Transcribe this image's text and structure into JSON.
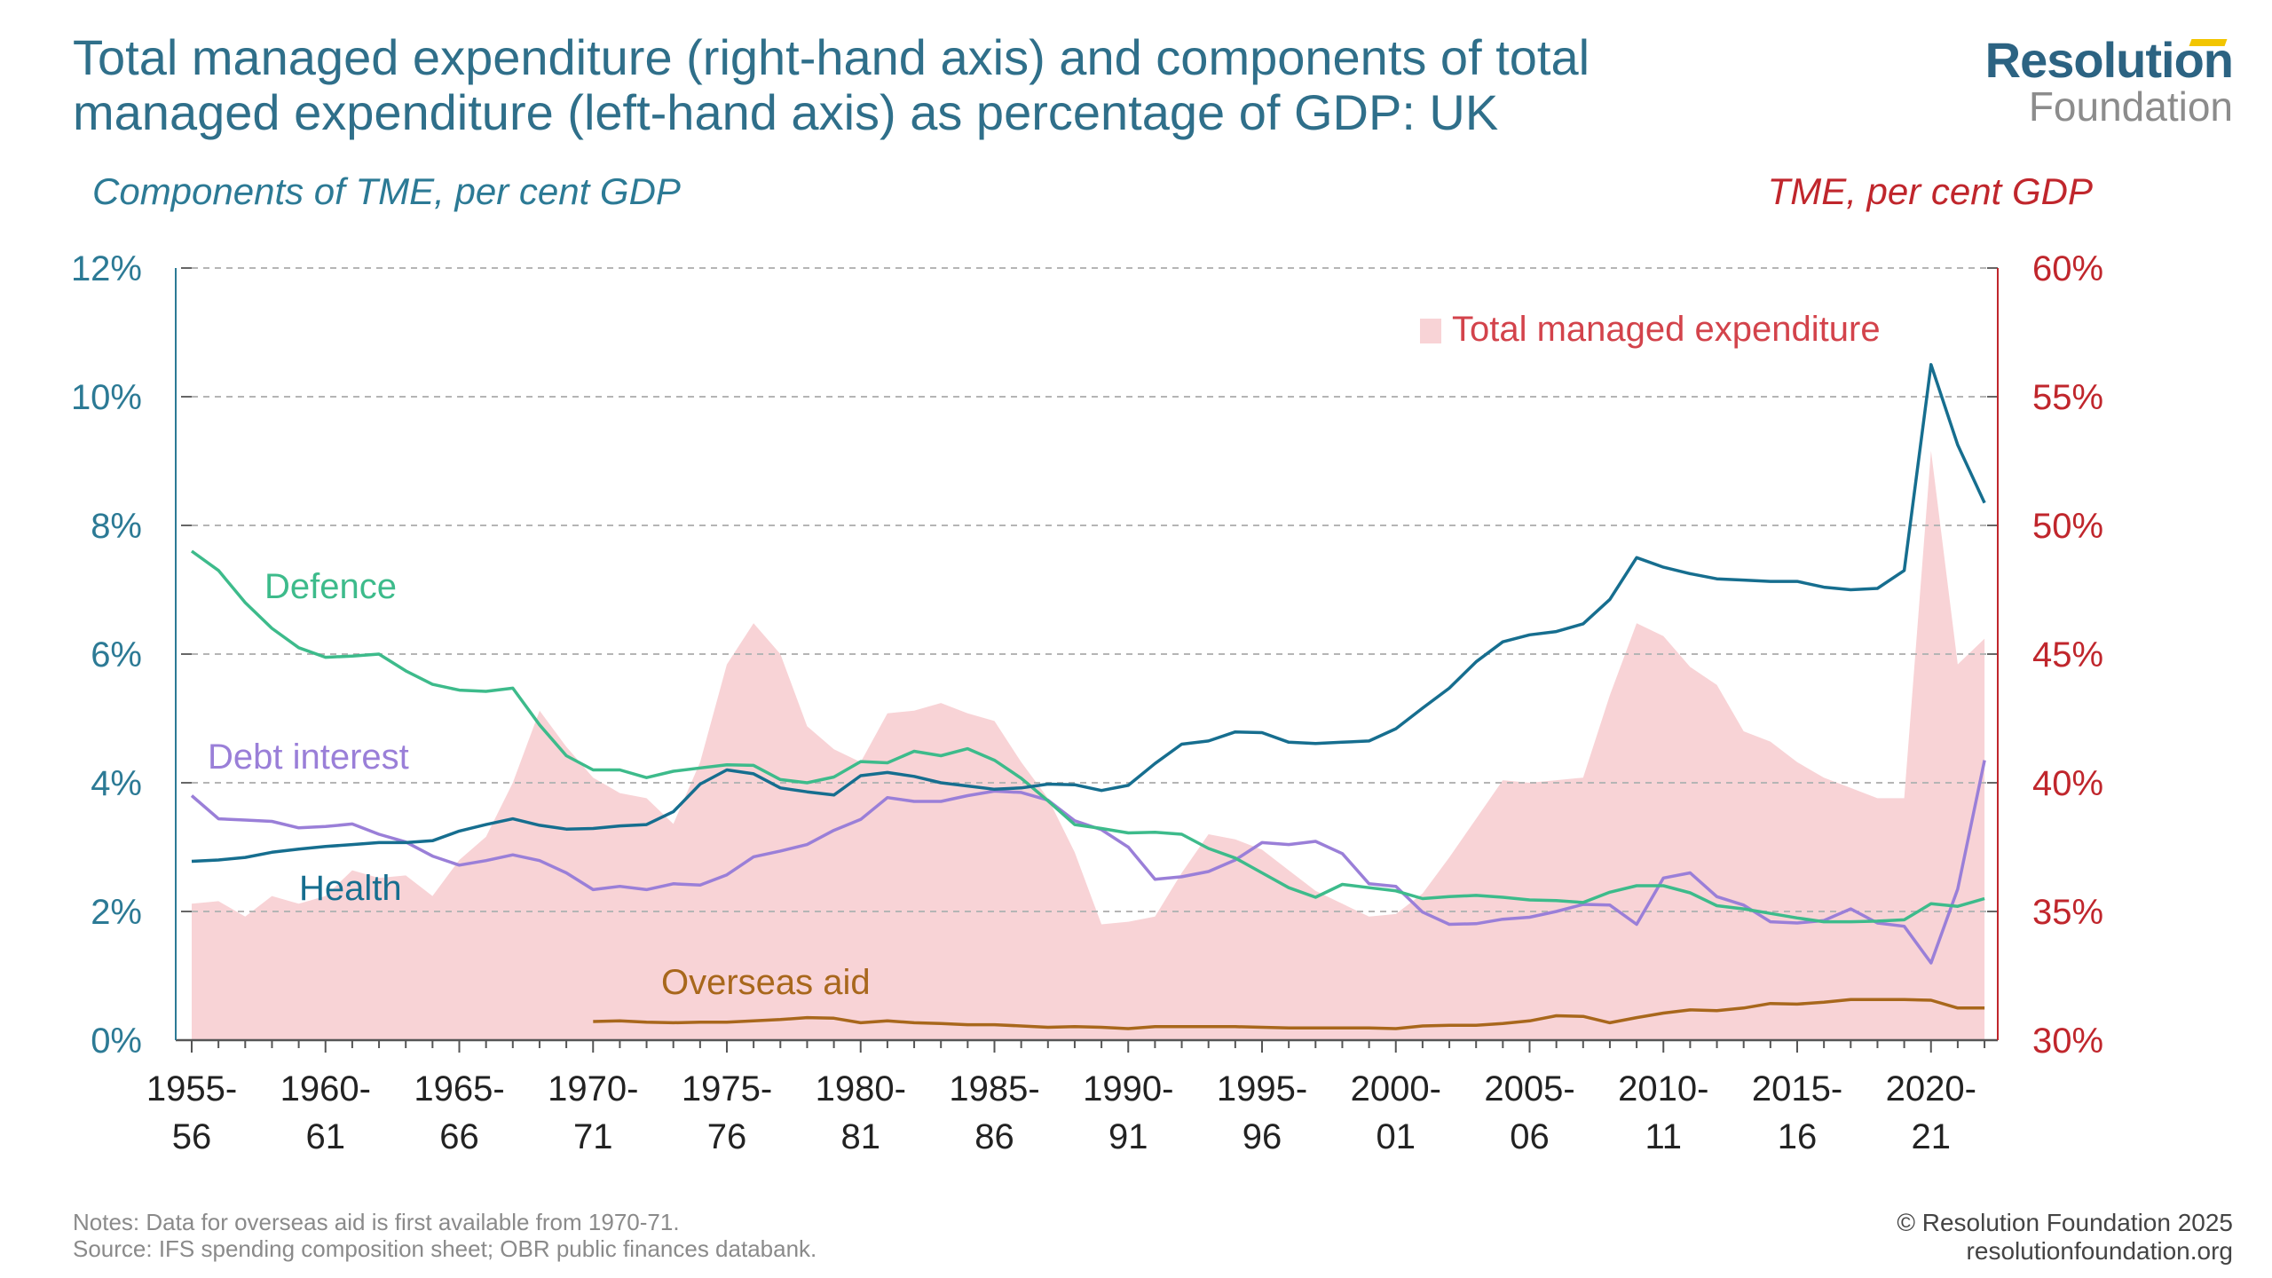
{
  "title": "Total managed expenditure (right-hand axis) and components of total managed expenditure (left-hand axis) as percentage of GDP: UK",
  "logo": {
    "top": "Resolution",
    "bottom": "Foundation"
  },
  "colors": {
    "defence": "#3dbb8b",
    "health": "#166e8f",
    "debt_interest": "#9a7fd8",
    "overseas_aid": "#a8671c",
    "tme_fill": "#f8d3d6",
    "left_axis": "#2c7a95",
    "right_axis": "#c0262c",
    "grid": "#b5b5b5"
  },
  "notes": "Notes: Data for overseas aid is first available from 1970-71.",
  "source": "Source: IFS spending composition sheet; OBR public finances databank.",
  "copyright": "© Resolution Foundation 2025",
  "website": "resolutionfoundation.org",
  "chart_data": {
    "type": "line",
    "left_axis_title": "Components of TME, per cent GDP",
    "right_axis_title": "TME, per cent GDP",
    "left_ylim": [
      0,
      12
    ],
    "right_ylim": [
      30,
      60
    ],
    "left_ticks": [
      "0%",
      "2%",
      "4%",
      "6%",
      "8%",
      "10%",
      "12%"
    ],
    "right_ticks": [
      "30%",
      "35%",
      "40%",
      "45%",
      "50%",
      "55%",
      "60%"
    ],
    "grid": true,
    "x_tick_labels": [
      [
        "1955-",
        "56"
      ],
      [
        "1960-",
        "61"
      ],
      [
        "1965-",
        "66"
      ],
      [
        "1970-",
        "71"
      ],
      [
        "1975-",
        "76"
      ],
      [
        "1980-",
        "81"
      ],
      [
        "1985-",
        "86"
      ],
      [
        "1990-",
        "91"
      ],
      [
        "1995-",
        "96"
      ],
      [
        "2000-",
        "01"
      ],
      [
        "2005-",
        "06"
      ],
      [
        "2010-",
        "11"
      ],
      [
        "2015-",
        "16"
      ],
      [
        "2020-",
        "21"
      ]
    ],
    "x_start_year": 1955,
    "x_end_year": 2022,
    "series_labels": {
      "tme": "Total managed expenditure",
      "defence": "Defence",
      "debt_interest": "Debt interest",
      "health": "Health",
      "overseas_aid": "Overseas aid"
    },
    "tme": [
      35.3,
      35.4,
      34.8,
      35.6,
      35.3,
      35.6,
      36.6,
      36.3,
      36.4,
      35.6,
      37.0,
      37.9,
      40.0,
      42.8,
      41.4,
      40.2,
      39.6,
      39.4,
      38.4,
      40.8,
      44.6,
      46.2,
      45.0,
      42.2,
      41.3,
      40.8,
      42.7,
      42.8,
      43.1,
      42.7,
      42.4,
      40.8,
      39.4,
      37.3,
      34.5,
      34.6,
      34.8,
      36.5,
      38.0,
      37.8,
      37.4,
      36.6,
      35.8,
      35.3,
      34.8,
      34.9,
      35.7,
      37.1,
      38.6,
      40.1,
      40.0,
      40.1,
      40.2,
      43.4,
      46.2,
      45.7,
      44.5,
      43.8,
      42.0,
      41.6,
      40.8,
      40.2,
      39.8,
      39.4,
      39.4,
      52.9,
      44.6,
      45.6
    ],
    "defence": [
      7.6,
      7.3,
      6.8,
      6.4,
      6.1,
      5.95,
      5.97,
      6.0,
      5.74,
      5.53,
      5.44,
      5.42,
      5.47,
      4.9,
      4.42,
      4.2,
      4.2,
      4.08,
      4.18,
      4.23,
      4.28,
      4.27,
      4.05,
      4.0,
      4.09,
      4.33,
      4.31,
      4.49,
      4.42,
      4.53,
      4.35,
      4.07,
      3.72,
      3.35,
      3.29,
      3.22,
      3.23,
      3.2,
      2.98,
      2.83,
      2.6,
      2.37,
      2.22,
      2.42,
      2.37,
      2.32,
      2.2,
      2.23,
      2.25,
      2.22,
      2.18,
      2.17,
      2.14,
      2.3,
      2.4,
      2.4,
      2.29,
      2.09,
      2.04,
      1.97,
      1.9,
      1.84,
      1.84,
      1.85,
      1.87,
      2.12,
      2.08,
      2.2
    ],
    "debt_interest": [
      3.8,
      3.44,
      3.42,
      3.4,
      3.3,
      3.32,
      3.36,
      3.2,
      3.08,
      2.86,
      2.72,
      2.79,
      2.88,
      2.79,
      2.6,
      2.34,
      2.39,
      2.34,
      2.43,
      2.41,
      2.57,
      2.85,
      2.94,
      3.04,
      3.26,
      3.43,
      3.77,
      3.71,
      3.71,
      3.8,
      3.87,
      3.85,
      3.73,
      3.41,
      3.27,
      3.0,
      2.5,
      2.54,
      2.62,
      2.8,
      3.07,
      3.04,
      3.09,
      2.9,
      2.43,
      2.39,
      1.99,
      1.8,
      1.81,
      1.88,
      1.91,
      2.0,
      2.11,
      2.1,
      1.8,
      2.52,
      2.6,
      2.23,
      2.1,
      1.84,
      1.82,
      1.86,
      2.04,
      1.82,
      1.77,
      1.2,
      2.35,
      4.35
    ],
    "health": [
      2.78,
      2.8,
      2.84,
      2.92,
      2.97,
      3.01,
      3.04,
      3.07,
      3.07,
      3.1,
      3.25,
      3.35,
      3.44,
      3.34,
      3.28,
      3.29,
      3.33,
      3.35,
      3.55,
      3.98,
      4.2,
      4.14,
      3.92,
      3.86,
      3.81,
      4.11,
      4.16,
      4.1,
      4.0,
      3.95,
      3.9,
      3.92,
      3.98,
      3.97,
      3.88,
      3.96,
      4.3,
      4.6,
      4.65,
      4.79,
      4.78,
      4.63,
      4.61,
      4.63,
      4.65,
      4.84,
      5.16,
      5.47,
      5.88,
      6.19,
      6.3,
      6.35,
      6.47,
      6.85,
      7.5,
      7.35,
      7.25,
      7.17,
      7.15,
      7.13,
      7.13,
      7.04,
      7.0,
      7.02,
      7.3,
      10.5,
      9.25,
      8.35
    ],
    "overseas_aid_start_year": 1970,
    "overseas_aid": [
      0.29,
      0.3,
      0.28,
      0.27,
      0.28,
      0.28,
      0.3,
      0.32,
      0.35,
      0.34,
      0.27,
      0.3,
      0.27,
      0.26,
      0.24,
      0.24,
      0.22,
      0.2,
      0.21,
      0.2,
      0.18,
      0.21,
      0.21,
      0.21,
      0.21,
      0.2,
      0.19,
      0.19,
      0.19,
      0.19,
      0.18,
      0.22,
      0.23,
      0.23,
      0.26,
      0.3,
      0.38,
      0.37,
      0.27,
      0.35,
      0.42,
      0.47,
      0.46,
      0.5,
      0.57,
      0.56,
      0.59,
      0.63,
      0.63,
      0.63,
      0.62,
      0.5,
      0.5
    ]
  }
}
